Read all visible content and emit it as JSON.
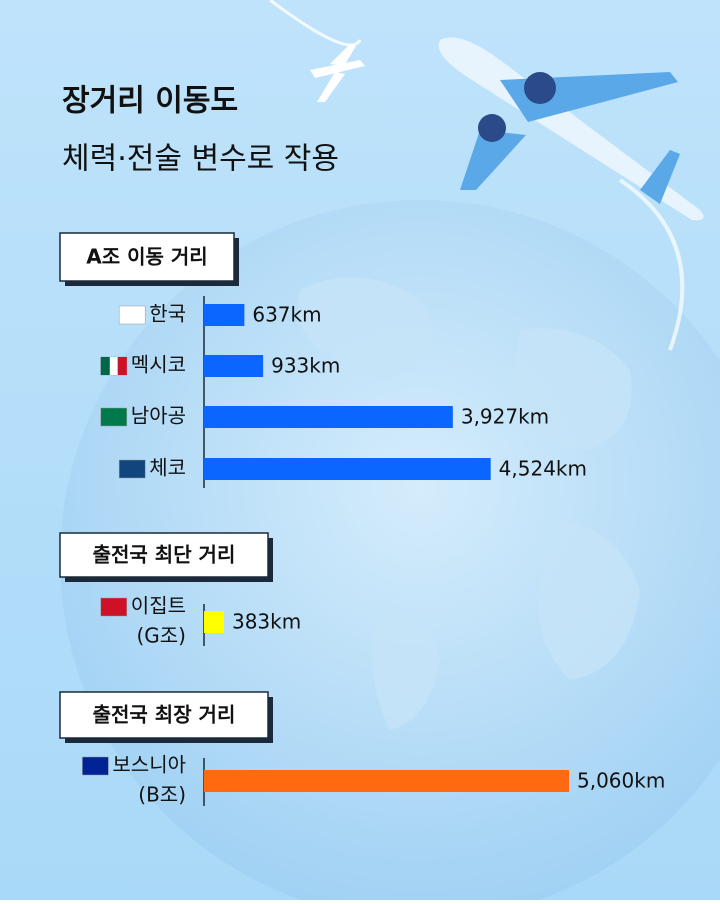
{
  "headline": [
    "장거리 이동도",
    "체력·전술 변수로 작용"
  ],
  "chart_data": [
    {
      "type": "bar",
      "orientation": "horizontal",
      "title": "A조 이동 거리",
      "categories": [
        "한국",
        "멕시코",
        "남아공",
        "체코"
      ],
      "values": [
        637,
        933,
        3927,
        4524
      ],
      "value_labels": [
        "637km",
        "933km",
        "3,927km",
        "4,524km"
      ],
      "color": "#0a66ff",
      "xlim": [
        0,
        5760
      ]
    },
    {
      "type": "bar",
      "orientation": "horizontal",
      "title": "출전국 최단 거리",
      "categories": [
        "이집트"
      ],
      "group_labels": [
        "(G조)"
      ],
      "values": [
        383
      ],
      "value_labels": [
        "383km"
      ],
      "color": "#ffff00",
      "xlim": [
        0,
        7000
      ]
    },
    {
      "type": "bar",
      "orientation": "horizontal",
      "title": "출전국 최장 거리",
      "categories": [
        "보스니아"
      ],
      "group_labels": [
        "(B조)"
      ],
      "values": [
        5060
      ],
      "value_labels": [
        "5,060km"
      ],
      "color": "#ff6a10",
      "xlim": [
        0,
        5060
      ]
    }
  ]
}
